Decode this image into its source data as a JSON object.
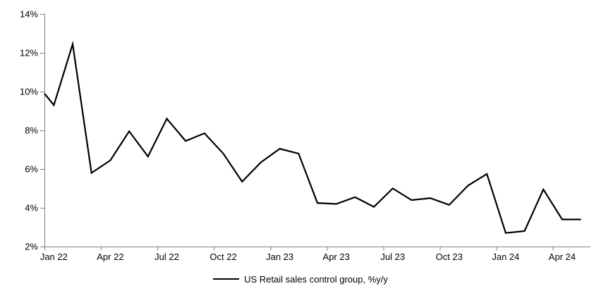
{
  "chart_data": {
    "type": "line",
    "title": "",
    "legend": "US Retail sales control group, %y/y",
    "legend_position": "bottom-center",
    "grid": false,
    "x": [
      "Jan 22",
      "Feb 22",
      "Mar 22",
      "Apr 22",
      "May 22",
      "Jun 22",
      "Jul 22",
      "Aug 22",
      "Sep 22",
      "Oct 22",
      "Nov 22",
      "Dec 22",
      "Jan 23",
      "Feb 23",
      "Mar 23",
      "Apr 23",
      "May 23",
      "Jun 23",
      "Jul 23",
      "Aug 23",
      "Sep 23",
      "Oct 23",
      "Nov 23",
      "Dec 23",
      "Jan 24",
      "Feb 24",
      "Mar 24",
      "Apr 24",
      "May 24"
    ],
    "values": [
      9.3,
      12.45,
      5.8,
      6.45,
      7.95,
      6.65,
      8.6,
      7.45,
      7.85,
      6.8,
      5.35,
      6.35,
      7.05,
      6.8,
      4.25,
      4.2,
      4.55,
      4.05,
      5.0,
      4.4,
      4.5,
      4.15,
      5.15,
      5.75,
      2.7,
      2.8,
      4.95,
      3.4,
      3.4
    ],
    "edge_start_value": 9.9,
    "x_tick_labels_shown": [
      "Jan 22",
      "Apr 22",
      "Jul 22",
      "Oct 22",
      "Jan 23",
      "Apr 23",
      "Jul 23",
      "Oct 23",
      "Jan 24",
      "Apr 24"
    ],
    "x_label_interval": 3,
    "ylim": [
      2,
      14
    ],
    "ytick_step": 2,
    "ytick_labels": [
      "2%",
      "4%",
      "6%",
      "8%",
      "10%",
      "12%",
      "14%"
    ],
    "line_color": "#000000",
    "axis_color": "#808080",
    "text_color": "#000000",
    "background": "#ffffff"
  }
}
